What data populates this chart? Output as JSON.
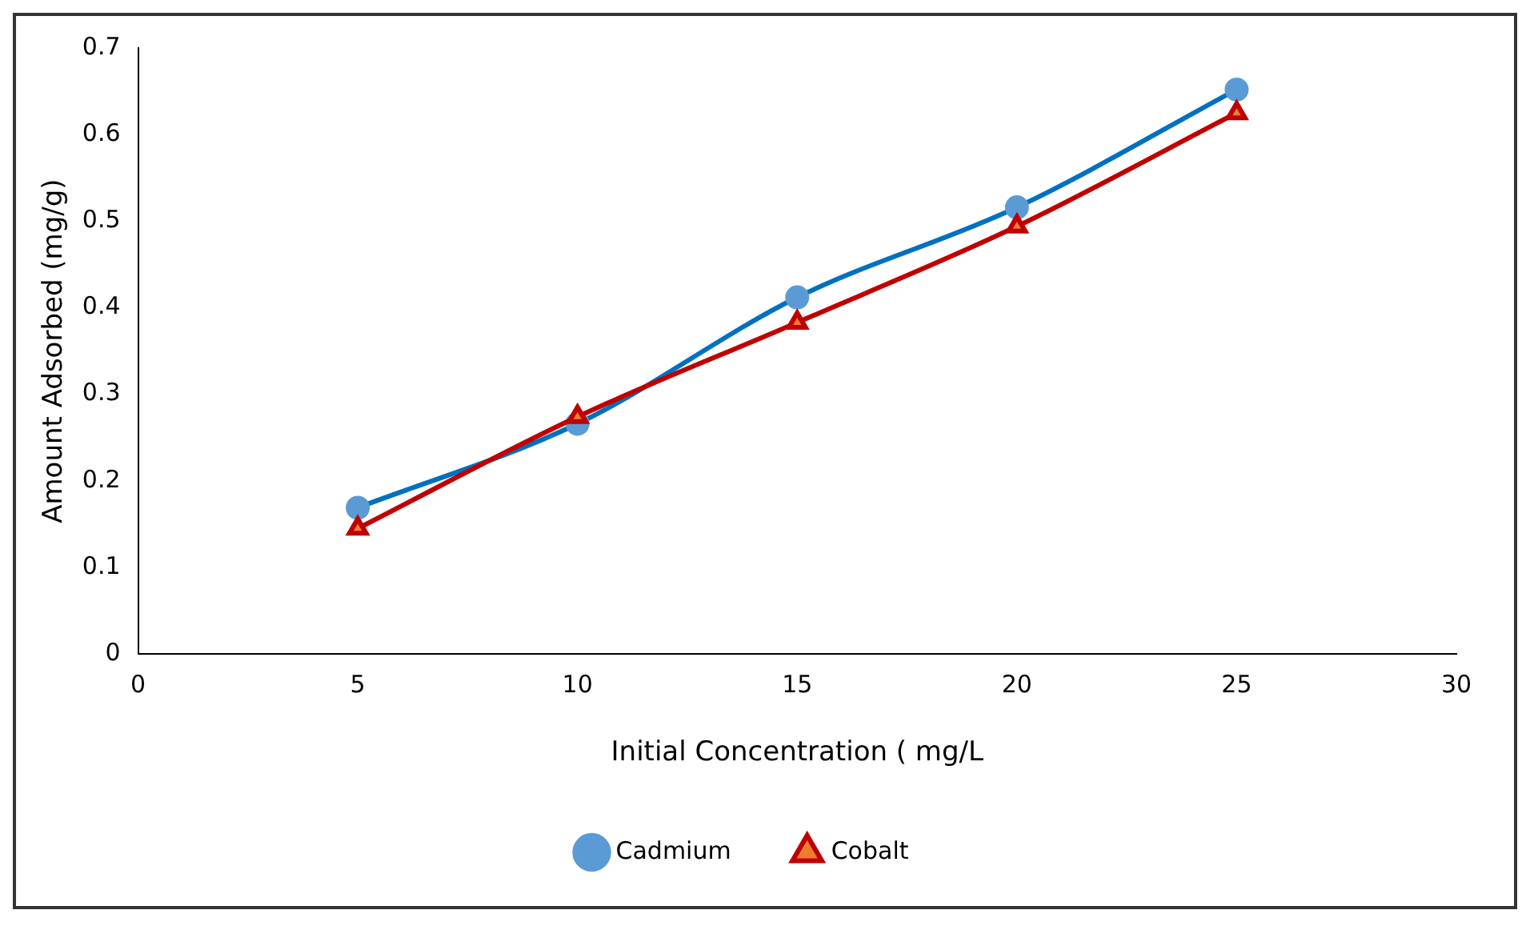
{
  "chart_data": {
    "type": "line",
    "xlabel": "Initial Concentration ( mg/L",
    "ylabel": "Amount Adsorbed (mg/g)",
    "x": [
      5,
      10,
      15,
      20,
      25
    ],
    "series": [
      {
        "name": "Cadmium",
        "color": "#0070c0",
        "marker": "circle",
        "values": [
          0.169,
          0.266,
          0.412,
          0.516,
          0.652
        ]
      },
      {
        "name": "Cobalt",
        "color": "#c00000",
        "marker": "triangle",
        "values": [
          0.145,
          0.274,
          0.383,
          0.494,
          0.625
        ]
      }
    ],
    "xlim": [
      0,
      30
    ],
    "xticks": [
      0,
      5,
      10,
      15,
      20,
      25,
      30
    ],
    "ylim": [
      0,
      0.7
    ],
    "yticks": [
      0,
      0.1,
      0.2,
      0.3,
      0.4,
      0.5,
      0.6,
      0.7
    ],
    "grid": false,
    "legend": "bottom"
  }
}
